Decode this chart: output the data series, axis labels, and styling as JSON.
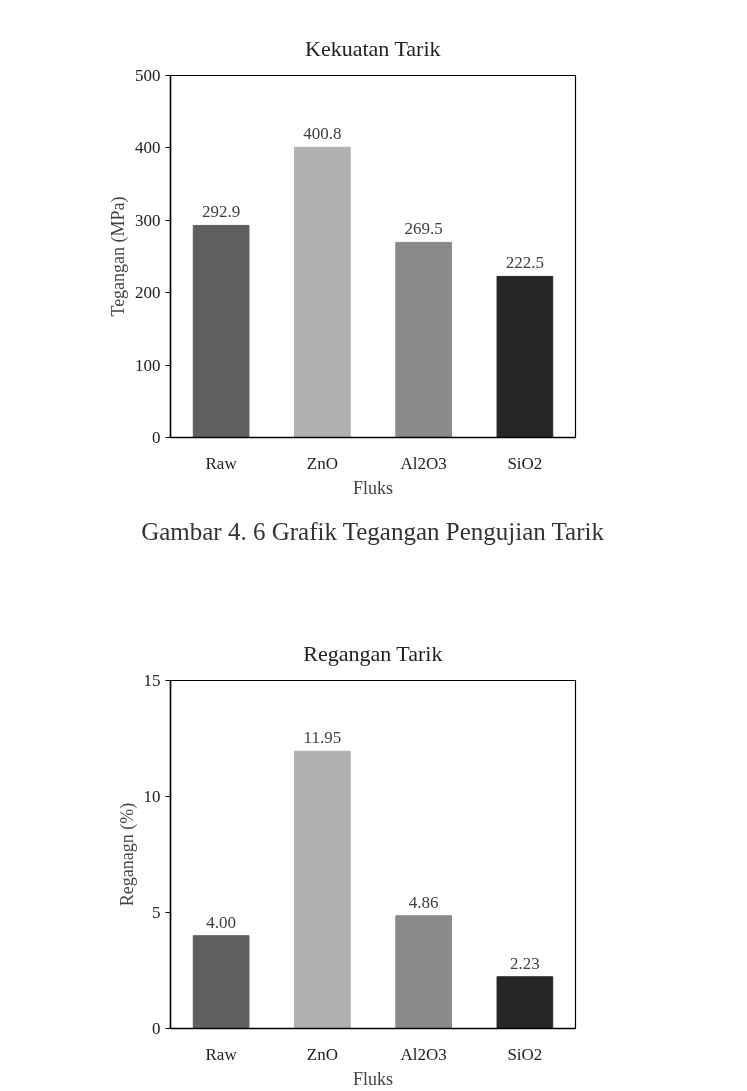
{
  "chart_data": [
    {
      "type": "bar",
      "title": "Kekuatan Tarik",
      "xlabel": "Fluks",
      "ylabel": "Tegangan (MPa)",
      "categories": [
        "Raw",
        "ZnO",
        "Al2O3",
        "SiO2"
      ],
      "values": [
        292.9,
        400.8,
        269.5,
        222.5
      ],
      "colors": [
        "#5f5f5f",
        "#b0b0b0",
        "#8a8a8a",
        "#262626"
      ],
      "ylim": [
        0,
        500
      ],
      "yticks": [
        0,
        100,
        200,
        300,
        400,
        500
      ],
      "grid": false,
      "data_labels": true,
      "annotations": [
        "Gambar 4. 6 Grafik Tegangan Pengujian Tarik"
      ]
    },
    {
      "type": "bar",
      "title": "Regangan Tarik",
      "xlabel": "Fluks",
      "ylabel": "Reganagn (%)",
      "categories": [
        "Raw",
        "ZnO",
        "Al2O3",
        "SiO2"
      ],
      "values": [
        4.0,
        11.95,
        4.86,
        2.23
      ],
      "colors": [
        "#5f5f5f",
        "#b0b0b0",
        "#8a8a8a",
        "#262626"
      ],
      "ylim": [
        0,
        15
      ],
      "yticks": [
        0,
        5,
        10,
        15
      ],
      "grid": false,
      "value_labels": [
        "4.00",
        "11.95",
        "4.86",
        "2.23"
      ]
    }
  ]
}
